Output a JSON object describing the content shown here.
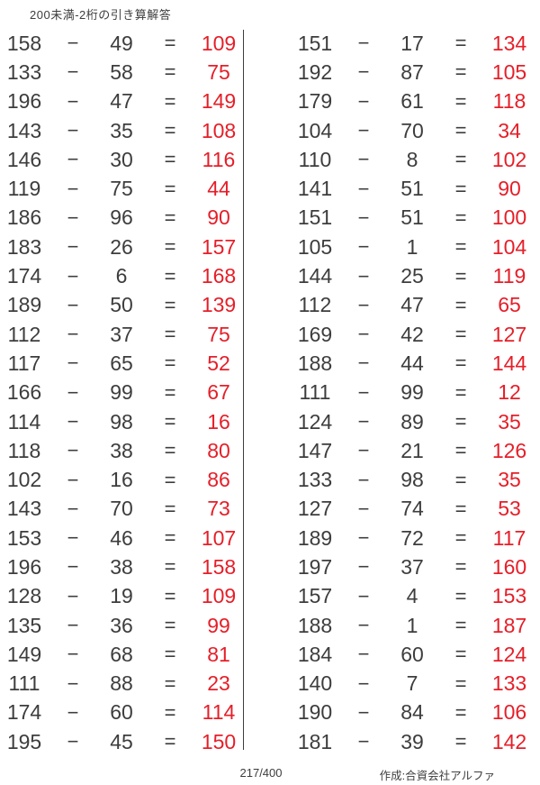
{
  "title": "200未満-2桁の引き算解答",
  "operator": "−",
  "equals": "=",
  "footer": {
    "page": "217/400",
    "credit": "作成:合資会社アルファ"
  },
  "colors": {
    "text": "#3d3d3d",
    "answer": "#e61e28",
    "divider": "#3d3d3d",
    "background": "#ffffff"
  },
  "columns": [
    {
      "rows": [
        {
          "a": "158",
          "b": "49",
          "ans": "109"
        },
        {
          "a": "133",
          "b": "58",
          "ans": "75"
        },
        {
          "a": "196",
          "b": "47",
          "ans": "149"
        },
        {
          "a": "143",
          "b": "35",
          "ans": "108"
        },
        {
          "a": "146",
          "b": "30",
          "ans": "116"
        },
        {
          "a": "119",
          "b": "75",
          "ans": "44"
        },
        {
          "a": "186",
          "b": "96",
          "ans": "90"
        },
        {
          "a": "183",
          "b": "26",
          "ans": "157"
        },
        {
          "a": "174",
          "b": "6",
          "ans": "168"
        },
        {
          "a": "189",
          "b": "50",
          "ans": "139"
        },
        {
          "a": "112",
          "b": "37",
          "ans": "75"
        },
        {
          "a": "117",
          "b": "65",
          "ans": "52"
        },
        {
          "a": "166",
          "b": "99",
          "ans": "67"
        },
        {
          "a": "114",
          "b": "98",
          "ans": "16"
        },
        {
          "a": "118",
          "b": "38",
          "ans": "80"
        },
        {
          "a": "102",
          "b": "16",
          "ans": "86"
        },
        {
          "a": "143",
          "b": "70",
          "ans": "73"
        },
        {
          "a": "153",
          "b": "46",
          "ans": "107"
        },
        {
          "a": "196",
          "b": "38",
          "ans": "158"
        },
        {
          "a": "128",
          "b": "19",
          "ans": "109"
        },
        {
          "a": "135",
          "b": "36",
          "ans": "99"
        },
        {
          "a": "149",
          "b": "68",
          "ans": "81"
        },
        {
          "a": "111",
          "b": "88",
          "ans": "23"
        },
        {
          "a": "174",
          "b": "60",
          "ans": "114"
        },
        {
          "a": "195",
          "b": "45",
          "ans": "150"
        }
      ]
    },
    {
      "rows": [
        {
          "a": "151",
          "b": "17",
          "ans": "134"
        },
        {
          "a": "192",
          "b": "87",
          "ans": "105"
        },
        {
          "a": "179",
          "b": "61",
          "ans": "118"
        },
        {
          "a": "104",
          "b": "70",
          "ans": "34"
        },
        {
          "a": "110",
          "b": "8",
          "ans": "102"
        },
        {
          "a": "141",
          "b": "51",
          "ans": "90"
        },
        {
          "a": "151",
          "b": "51",
          "ans": "100"
        },
        {
          "a": "105",
          "b": "1",
          "ans": "104"
        },
        {
          "a": "144",
          "b": "25",
          "ans": "119"
        },
        {
          "a": "112",
          "b": "47",
          "ans": "65"
        },
        {
          "a": "169",
          "b": "42",
          "ans": "127"
        },
        {
          "a": "188",
          "b": "44",
          "ans": "144"
        },
        {
          "a": "111",
          "b": "99",
          "ans": "12"
        },
        {
          "a": "124",
          "b": "89",
          "ans": "35"
        },
        {
          "a": "147",
          "b": "21",
          "ans": "126"
        },
        {
          "a": "133",
          "b": "98",
          "ans": "35"
        },
        {
          "a": "127",
          "b": "74",
          "ans": "53"
        },
        {
          "a": "189",
          "b": "72",
          "ans": "117"
        },
        {
          "a": "197",
          "b": "37",
          "ans": "160"
        },
        {
          "a": "157",
          "b": "4",
          "ans": "153"
        },
        {
          "a": "188",
          "b": "1",
          "ans": "187"
        },
        {
          "a": "184",
          "b": "60",
          "ans": "124"
        },
        {
          "a": "140",
          "b": "7",
          "ans": "133"
        },
        {
          "a": "190",
          "b": "84",
          "ans": "106"
        },
        {
          "a": "181",
          "b": "39",
          "ans": "142"
        }
      ]
    }
  ]
}
